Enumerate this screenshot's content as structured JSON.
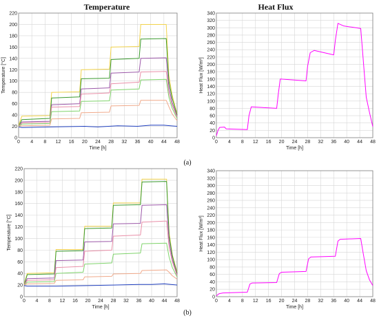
{
  "titles": {
    "left": "Temperature",
    "right": "Heat Flux"
  },
  "panel_labels": {
    "a": "(a)",
    "b": "(b)"
  },
  "chart_data": [
    {
      "id": "a-temp",
      "type": "line",
      "xlabel": "Time [h]",
      "ylabel": "Temperature [°C]",
      "xlim": [
        0,
        48
      ],
      "ylim": [
        0,
        220
      ],
      "xticks": [
        0,
        4,
        8,
        12,
        16,
        20,
        24,
        28,
        32,
        36,
        40,
        44,
        48
      ],
      "yticks": [
        0,
        20,
        40,
        60,
        80,
        100,
        120,
        140,
        160,
        180,
        200,
        220
      ],
      "grid": true,
      "series": [
        {
          "color": "#f2d34a",
          "points": [
            [
              0,
              22
            ],
            [
              1,
              38
            ],
            [
              9.5,
              39
            ],
            [
              10,
              80
            ],
            [
              18.5,
              81
            ],
            [
              19,
              120
            ],
            [
              27.5,
              121
            ],
            [
              28,
              160
            ],
            [
              36.5,
              161
            ],
            [
              37,
              200
            ],
            [
              44.7,
              200
            ],
            [
              45.5,
              110
            ],
            [
              46.5,
              75
            ],
            [
              48,
              42
            ]
          ]
        },
        {
          "color": "#3a9a2e",
          "points": [
            [
              0,
              20
            ],
            [
              1,
              32
            ],
            [
              9.5,
              34
            ],
            [
              10,
              70
            ],
            [
              18.5,
              72
            ],
            [
              19,
              104
            ],
            [
              27.5,
              105
            ],
            [
              28,
              138
            ],
            [
              36.5,
              140
            ],
            [
              37,
              174
            ],
            [
              44.7,
              175
            ],
            [
              45.5,
              100
            ],
            [
              46.5,
              70
            ],
            [
              48,
              40
            ]
          ]
        },
        {
          "color": "#9b57a8",
          "points": [
            [
              0,
              20
            ],
            [
              1,
              28
            ],
            [
              9.5,
              29
            ],
            [
              10,
              58
            ],
            [
              18.5,
              60
            ],
            [
              19,
              86
            ],
            [
              27.5,
              88
            ],
            [
              28,
              114
            ],
            [
              36.5,
              116
            ],
            [
              37,
              140
            ],
            [
              44.7,
              141
            ],
            [
              45.5,
              90
            ],
            [
              46.5,
              62
            ],
            [
              48,
              38
            ]
          ]
        },
        {
          "color": "#e98fa8",
          "points": [
            [
              0,
              20
            ],
            [
              1,
              26
            ],
            [
              9.5,
              27
            ],
            [
              10,
              54
            ],
            [
              18.5,
              55
            ],
            [
              19,
              77
            ],
            [
              27.5,
              79
            ],
            [
              28,
              95
            ],
            [
              36.5,
              98
            ],
            [
              37,
              116
            ],
            [
              44.7,
              117
            ],
            [
              45.5,
              80
            ],
            [
              46.5,
              58
            ],
            [
              48,
              36
            ]
          ]
        },
        {
          "color": "#7ed36a",
          "points": [
            [
              0,
              20
            ],
            [
              1,
              24
            ],
            [
              9.5,
              25
            ],
            [
              10,
              46
            ],
            [
              18.5,
              47
            ],
            [
              19,
              64
            ],
            [
              27.5,
              65
            ],
            [
              28,
              84
            ],
            [
              36.5,
              86
            ],
            [
              37,
              102
            ],
            [
              44.7,
              103
            ],
            [
              45.5,
              72
            ],
            [
              46.5,
              52
            ],
            [
              48,
              34
            ]
          ]
        },
        {
          "color": "#f0a98a",
          "points": [
            [
              0,
              20
            ],
            [
              1,
              21
            ],
            [
              9.5,
              22
            ],
            [
              10,
              33
            ],
            [
              18.5,
              34
            ],
            [
              19,
              44
            ],
            [
              27.5,
              45
            ],
            [
              28,
              56
            ],
            [
              36.5,
              57
            ],
            [
              37,
              66
            ],
            [
              44.7,
              66
            ],
            [
              45.5,
              55
            ],
            [
              46.5,
              42
            ],
            [
              48,
              30
            ]
          ]
        },
        {
          "color": "#1f3fbf",
          "points": [
            [
              0,
              19
            ],
            [
              1,
              18
            ],
            [
              10,
              19
            ],
            [
              20,
              20
            ],
            [
              24,
              19
            ],
            [
              30,
              21
            ],
            [
              36,
              20
            ],
            [
              40,
              22
            ],
            [
              44,
              22
            ],
            [
              46,
              21
            ],
            [
              48,
              20
            ]
          ]
        }
      ]
    },
    {
      "id": "a-flux",
      "type": "line",
      "xlabel": "Time [h]",
      "ylabel": "Heat Flux [W/m²]",
      "xlim": [
        0,
        48
      ],
      "ylim": [
        0,
        340
      ],
      "xticks": [
        0,
        4,
        8,
        12,
        16,
        20,
        24,
        28,
        32,
        36,
        40,
        44,
        48
      ],
      "yticks": [
        0,
        20,
        40,
        60,
        80,
        100,
        120,
        140,
        160,
        180,
        200,
        220,
        240,
        260,
        280,
        300,
        320,
        340
      ],
      "grid": true,
      "series": [
        {
          "color": "#ff00ff",
          "points": [
            [
              0,
              5
            ],
            [
              0.5,
              20
            ],
            [
              1,
              28
            ],
            [
              2.5,
              29
            ],
            [
              3,
              24
            ],
            [
              9.5,
              22
            ],
            [
              10,
              60
            ],
            [
              10.7,
              84
            ],
            [
              18.5,
              80
            ],
            [
              19,
              120
            ],
            [
              19.6,
              160
            ],
            [
              27.5,
              155
            ],
            [
              28,
              195
            ],
            [
              28.8,
              232
            ],
            [
              30,
              238
            ],
            [
              36,
              226
            ],
            [
              36.5,
              265
            ],
            [
              37.3,
              312
            ],
            [
              39,
              305
            ],
            [
              44.3,
              298
            ],
            [
              45,
              220
            ],
            [
              46,
              110
            ],
            [
              47,
              68
            ],
            [
              48,
              30
            ]
          ]
        }
      ]
    },
    {
      "id": "b-temp",
      "type": "line",
      "xlabel": "Time [h]",
      "ylabel": "Temperature [°C]",
      "xlim": [
        0,
        48
      ],
      "ylim": [
        0,
        220
      ],
      "xticks": [
        0,
        4,
        8,
        12,
        16,
        20,
        24,
        28,
        32,
        36,
        40,
        44,
        48
      ],
      "yticks": [
        0,
        20,
        40,
        60,
        80,
        100,
        120,
        140,
        160,
        180,
        200,
        220
      ],
      "grid": true,
      "series": [
        {
          "color": "#f2d34a",
          "points": [
            [
              0,
              22
            ],
            [
              1,
              40
            ],
            [
              9.5,
              41
            ],
            [
              10,
              81
            ],
            [
              18.5,
              81
            ],
            [
              19,
              121
            ],
            [
              27.5,
              121
            ],
            [
              28,
              161
            ],
            [
              36.5,
              161
            ],
            [
              37,
              202
            ],
            [
              44.7,
              202
            ],
            [
              45.5,
              110
            ],
            [
              46.5,
              72
            ],
            [
              48,
              42
            ]
          ]
        },
        {
          "color": "#3a9a2e",
          "points": [
            [
              0,
              20
            ],
            [
              1,
              38
            ],
            [
              9.5,
              39
            ],
            [
              10,
              78
            ],
            [
              18.5,
              79
            ],
            [
              19,
              117
            ],
            [
              27.5,
              118
            ],
            [
              28,
              157
            ],
            [
              36.5,
              158
            ],
            [
              37,
              197
            ],
            [
              44.7,
              198
            ],
            [
              45.5,
              105
            ],
            [
              46.5,
              70
            ],
            [
              48,
              40
            ]
          ]
        },
        {
          "color": "#9b57a8",
          "points": [
            [
              0,
              20
            ],
            [
              1,
              31
            ],
            [
              9.5,
              32
            ],
            [
              10,
              62
            ],
            [
              18.5,
              63
            ],
            [
              19,
              94
            ],
            [
              27.5,
              95
            ],
            [
              28,
              125
            ],
            [
              36.5,
              126
            ],
            [
              37,
              157
            ],
            [
              44.7,
              158
            ],
            [
              45.5,
              95
            ],
            [
              46.5,
              64
            ],
            [
              48,
              38
            ]
          ]
        },
        {
          "color": "#e98fa8",
          "points": [
            [
              0,
              20
            ],
            [
              1,
              28
            ],
            [
              9.5,
              29
            ],
            [
              10,
              50
            ],
            [
              18.5,
              52
            ],
            [
              19,
              78
            ],
            [
              27.5,
              80
            ],
            [
              28,
              104
            ],
            [
              36.5,
              106
            ],
            [
              37,
              128
            ],
            [
              44.7,
              130
            ],
            [
              45.5,
              85
            ],
            [
              46.5,
              60
            ],
            [
              48,
              36
            ]
          ]
        },
        {
          "color": "#7ed36a",
          "points": [
            [
              0,
              20
            ],
            [
              1,
              25
            ],
            [
              9.5,
              26
            ],
            [
              10,
              40
            ],
            [
              18.5,
              42
            ],
            [
              19,
              56
            ],
            [
              27.5,
              58
            ],
            [
              28,
              73
            ],
            [
              36.5,
              75
            ],
            [
              37,
              91
            ],
            [
              44.7,
              92
            ],
            [
              45.5,
              68
            ],
            [
              46.5,
              50
            ],
            [
              48,
              34
            ]
          ]
        },
        {
          "color": "#f0a98a",
          "points": [
            [
              0,
              20
            ],
            [
              1,
              22
            ],
            [
              9.5,
              23
            ],
            [
              10,
              28
            ],
            [
              18.5,
              29
            ],
            [
              19,
              34
            ],
            [
              27.5,
              35
            ],
            [
              28,
              39
            ],
            [
              36.5,
              40
            ],
            [
              37,
              45
            ],
            [
              44.7,
              46
            ],
            [
              45.5,
              42
            ],
            [
              46.5,
              36
            ],
            [
              48,
              30
            ]
          ]
        },
        {
          "color": "#1f3fbf",
          "points": [
            [
              0,
              19
            ],
            [
              1,
              18
            ],
            [
              10,
              18
            ],
            [
              20,
              19
            ],
            [
              28,
              20
            ],
            [
              36,
              21
            ],
            [
              40,
              21
            ],
            [
              44,
              22
            ],
            [
              46,
              21
            ],
            [
              48,
              20
            ]
          ]
        }
      ]
    },
    {
      "id": "b-flux",
      "type": "line",
      "xlabel": "Time [h]",
      "ylabel": "Heat Flux [W/m²]",
      "xlim": [
        0,
        48
      ],
      "ylim": [
        0,
        340
      ],
      "xticks": [
        0,
        4,
        8,
        12,
        16,
        20,
        24,
        28,
        32,
        36,
        40,
        44,
        48
      ],
      "yticks": [
        0,
        20,
        40,
        60,
        80,
        100,
        120,
        140,
        160,
        180,
        200,
        220,
        240,
        260,
        280,
        300,
        320,
        340
      ],
      "grid": true,
      "series": [
        {
          "color": "#ff00ff",
          "points": [
            [
              0,
              2
            ],
            [
              0.8,
              8
            ],
            [
              2,
              10
            ],
            [
              9.5,
              12
            ],
            [
              10.3,
              34
            ],
            [
              11,
              37
            ],
            [
              18.5,
              38
            ],
            [
              19.3,
              62
            ],
            [
              20,
              66
            ],
            [
              27.5,
              68
            ],
            [
              28.3,
              102
            ],
            [
              29,
              107
            ],
            [
              36.5,
              109
            ],
            [
              37.3,
              150
            ],
            [
              38,
              155
            ],
            [
              44.3,
              157
            ],
            [
              45,
              120
            ],
            [
              46,
              70
            ],
            [
              47,
              45
            ],
            [
              48,
              30
            ]
          ]
        }
      ]
    }
  ]
}
